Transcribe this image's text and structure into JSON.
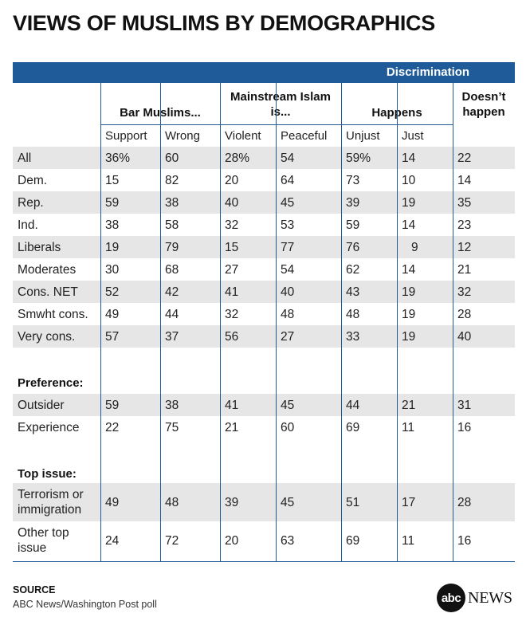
{
  "title": "VIEWS OF MUSLIMS BY DEMOGRAPHICS",
  "top_band_label": "Discrimination",
  "colors": {
    "header_band": "#1f5b99",
    "row_shade": "#e6e6e6",
    "text": "#222222"
  },
  "chart_data": {
    "type": "table",
    "group_headers": [
      "Bar Muslims...",
      "Mainstream Islam is...",
      "Happens",
      "Doesn’t happen"
    ],
    "sub_headers": [
      "Support",
      "Wrong",
      "Violent",
      "Peaceful",
      "Unjust",
      "Just"
    ],
    "rows": [
      {
        "label": "All",
        "values": [
          "36%",
          "60",
          "28%",
          "54",
          "59%",
          "14",
          "22"
        ],
        "shaded": true
      },
      {
        "label": "Dem.",
        "values": [
          "15",
          "82",
          "20",
          "64",
          "73",
          "10",
          "14"
        ],
        "shaded": false
      },
      {
        "label": "Rep.",
        "values": [
          "59",
          "38",
          "40",
          "45",
          "39",
          "19",
          "35"
        ],
        "shaded": true
      },
      {
        "label": "Ind.",
        "values": [
          "38",
          "58",
          "32",
          "53",
          "59",
          "14",
          "23"
        ],
        "shaded": false
      },
      {
        "label": "Liberals",
        "values": [
          "19",
          "79",
          "15",
          "77",
          "76",
          "9",
          "12"
        ],
        "shaded": true
      },
      {
        "label": "Moderates",
        "values": [
          "30",
          "68",
          "27",
          "54",
          "62",
          "14",
          "21"
        ],
        "shaded": false
      },
      {
        "label": "Cons. NET",
        "values": [
          "52",
          "42",
          "41",
          "40",
          "43",
          "19",
          "32"
        ],
        "shaded": true
      },
      {
        "label": "Smwht cons.",
        "values": [
          "49",
          "44",
          "32",
          "48",
          "48",
          "19",
          "28"
        ],
        "shaded": false
      },
      {
        "label": "Very cons.",
        "values": [
          "57",
          "37",
          "56",
          "27",
          "33",
          "19",
          "40"
        ],
        "shaded": true
      },
      {
        "section": "Preference:"
      },
      {
        "label": "Outsider",
        "values": [
          "59",
          "38",
          "41",
          "45",
          "44",
          "21",
          "31"
        ],
        "shaded": true
      },
      {
        "label": "Experience",
        "values": [
          "22",
          "75",
          "21",
          "60",
          "69",
          "11",
          "16"
        ],
        "shaded": false
      },
      {
        "section": "Top issue:"
      },
      {
        "label": "Terrorism or immigration",
        "values": [
          "49",
          "48",
          "39",
          "45",
          "51",
          "17",
          "28"
        ],
        "shaded": true
      },
      {
        "label": "Other top issue",
        "values": [
          "24",
          "72",
          "20",
          "63",
          "69",
          "11",
          "16"
        ],
        "shaded": false
      }
    ]
  },
  "source": {
    "heading": "SOURCE",
    "text": "ABC News/Washington Post poll"
  },
  "logo": {
    "mark": "abc",
    "word": "NEWS"
  }
}
